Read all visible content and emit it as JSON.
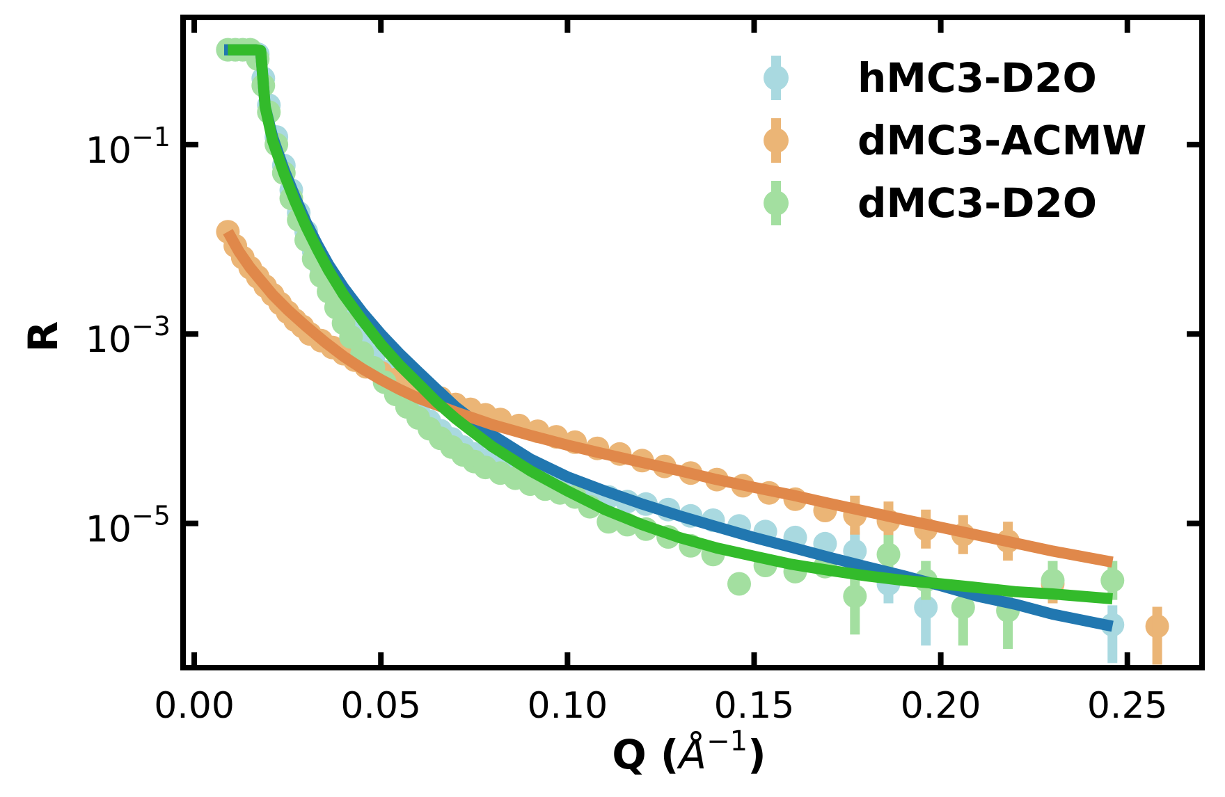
{
  "chart_data": {
    "type": "scatter",
    "xlabel": "Q (",
    "xlabel_unit": "Å",
    "xlabel_sup": "−1",
    "xlabel_end": ")",
    "ylabel": "R",
    "yscale": "log",
    "xlim": [
      -0.003,
      0.27
    ],
    "ylim": [
      3e-07,
      2.2
    ],
    "xticks": [
      0.0,
      0.05,
      0.1,
      0.15,
      0.2,
      0.25
    ],
    "xticklabels": [
      "0.00",
      "0.05",
      "0.10",
      "0.15",
      "0.20",
      "0.25"
    ],
    "yticks": [
      0.1,
      0.001,
      1e-05
    ],
    "yticklabels": [
      {
        "base": "10",
        "exp": "−1"
      },
      {
        "base": "10",
        "exp": "−3"
      },
      {
        "base": "10",
        "exp": "−5"
      }
    ],
    "legend_position": "top-right",
    "series": [
      {
        "name": "hMC3-D2O",
        "marker_color": "#a9d9e0",
        "fit_color": "#2177b0",
        "points": [
          [
            0.009,
            1.0
          ],
          [
            0.011,
            1.0
          ],
          [
            0.013,
            1.0
          ],
          [
            0.015,
            1.0
          ],
          [
            0.017,
            0.9
          ],
          [
            0.0185,
            0.5
          ],
          [
            0.02,
            0.26
          ],
          [
            0.022,
            0.12
          ],
          [
            0.024,
            0.06
          ],
          [
            0.026,
            0.033
          ],
          [
            0.028,
            0.019
          ],
          [
            0.03,
            0.012
          ],
          [
            0.032,
            0.0075
          ],
          [
            0.034,
            0.005
          ],
          [
            0.036,
            0.0034
          ],
          [
            0.038,
            0.0024
          ],
          [
            0.04,
            0.0017
          ],
          [
            0.042,
            0.0012
          ],
          [
            0.045,
            0.00082
          ],
          [
            0.048,
            0.00057
          ],
          [
            0.051,
            0.0004
          ],
          [
            0.054,
            0.00029
          ],
          [
            0.057,
            0.00021
          ],
          [
            0.06,
            0.00016
          ],
          [
            0.063,
            0.00012
          ],
          [
            0.066,
            9.5e-05
          ],
          [
            0.069,
            7.8e-05
          ],
          [
            0.072,
            6.4e-05
          ],
          [
            0.075,
            5.4e-05
          ],
          [
            0.078,
            4.6e-05
          ],
          [
            0.082,
            3.9e-05
          ],
          [
            0.086,
            3.4e-05
          ],
          [
            0.09,
            3e-05
          ],
          [
            0.094,
            2.7e-05
          ],
          [
            0.098,
            2.5e-05
          ],
          [
            0.102,
            2.3e-05
          ],
          [
            0.106,
            2.1e-05
          ],
          [
            0.111,
            1.9e-05
          ],
          [
            0.116,
            1.7e-05
          ],
          [
            0.121,
            1.6e-05
          ],
          [
            0.127,
            1.4e-05
          ],
          [
            0.133,
            1.2e-05
          ],
          [
            0.139,
            1.08e-05
          ],
          [
            0.146,
            9.4e-06
          ],
          [
            0.153,
            8.2e-06
          ],
          [
            0.161,
            7.1e-06
          ],
          [
            0.169,
            6.1e-06
          ],
          [
            0.177,
            5.1e-06
          ],
          [
            0.186,
            2.3e-06
          ],
          [
            0.196,
            1.3e-06
          ],
          [
            0.246,
            8.5e-07
          ]
        ],
        "fit": [
          [
            0.008,
            1.0
          ],
          [
            0.0165,
            1.0
          ],
          [
            0.0178,
            0.98
          ],
          [
            0.019,
            0.25
          ],
          [
            0.021,
            0.12
          ],
          [
            0.024,
            0.055
          ],
          [
            0.027,
            0.028
          ],
          [
            0.03,
            0.015
          ],
          [
            0.033,
            0.0088
          ],
          [
            0.036,
            0.0054
          ],
          [
            0.04,
            0.0031
          ],
          [
            0.045,
            0.0017
          ],
          [
            0.05,
            0.001
          ],
          [
            0.055,
            0.00062
          ],
          [
            0.06,
            0.0004
          ],
          [
            0.065,
            0.00026
          ],
          [
            0.07,
            0.00017
          ],
          [
            0.075,
            0.00012
          ],
          [
            0.08,
            8.5e-05
          ],
          [
            0.09,
            4.8e-05
          ],
          [
            0.1,
            3.1e-05
          ],
          [
            0.11,
            2.2e-05
          ],
          [
            0.12,
            1.6e-05
          ],
          [
            0.13,
            1.2e-05
          ],
          [
            0.14,
            9.2e-06
          ],
          [
            0.15,
            7.1e-06
          ],
          [
            0.16,
            5.6e-06
          ],
          [
            0.17,
            4.4e-06
          ],
          [
            0.18,
            3.5e-06
          ],
          [
            0.19,
            2.8e-06
          ],
          [
            0.2,
            2.2e-06
          ],
          [
            0.21,
            1.7e-06
          ],
          [
            0.22,
            1.4e-06
          ],
          [
            0.23,
            1.1e-06
          ],
          [
            0.246,
            8.2e-07
          ]
        ]
      },
      {
        "name": "dMC3-ACMW",
        "marker_color": "#ebb576",
        "fit_color": "#e0884a",
        "points": [
          [
            0.009,
            0.012
          ],
          [
            0.011,
            0.0085
          ],
          [
            0.013,
            0.0064
          ],
          [
            0.015,
            0.005
          ],
          [
            0.017,
            0.004
          ],
          [
            0.019,
            0.0032
          ],
          [
            0.021,
            0.0026
          ],
          [
            0.023,
            0.0021
          ],
          [
            0.025,
            0.0017
          ],
          [
            0.027,
            0.0014
          ],
          [
            0.029,
            0.0012
          ],
          [
            0.031,
            0.001
          ],
          [
            0.034,
            0.00085
          ],
          [
            0.037,
            0.00072
          ],
          [
            0.04,
            0.00062
          ],
          [
            0.043,
            0.00053
          ],
          [
            0.046,
            0.00045
          ],
          [
            0.05,
            0.00039
          ],
          [
            0.054,
            0.00033
          ],
          [
            0.058,
            0.00028
          ],
          [
            0.062,
            0.00024
          ],
          [
            0.066,
            0.00021
          ],
          [
            0.07,
            0.00018
          ],
          [
            0.074,
            0.00016
          ],
          [
            0.078,
            0.00014
          ],
          [
            0.082,
            0.000125
          ],
          [
            0.087,
            0.000108
          ],
          [
            0.092,
            9.4e-05
          ],
          [
            0.097,
            8.2e-05
          ],
          [
            0.102,
            7.2e-05
          ],
          [
            0.108,
            6.2e-05
          ],
          [
            0.114,
            5.4e-05
          ],
          [
            0.12,
            4.6e-05
          ],
          [
            0.126,
            4e-05
          ],
          [
            0.133,
            3.4e-05
          ],
          [
            0.14,
            2.9e-05
          ],
          [
            0.147,
            2.5e-05
          ],
          [
            0.154,
            2.1e-05
          ],
          [
            0.161,
            1.8e-05
          ],
          [
            0.169,
            1.37e-05
          ],
          [
            0.177,
            1.22e-05
          ],
          [
            0.186,
            1.06e-05
          ],
          [
            0.196,
            8.7e-06
          ],
          [
            0.206,
            7.6e-06
          ],
          [
            0.218,
            6.5e-06
          ],
          [
            0.23,
            2.3e-06
          ],
          [
            0.258,
            8.2e-07
          ]
        ],
        "fit": [
          [
            0.009,
            0.012
          ],
          [
            0.012,
            0.0074
          ],
          [
            0.015,
            0.005
          ],
          [
            0.018,
            0.0036
          ],
          [
            0.021,
            0.0026
          ],
          [
            0.025,
            0.0018
          ],
          [
            0.03,
            0.0012
          ],
          [
            0.035,
            0.00082
          ],
          [
            0.04,
            0.00058
          ],
          [
            0.045,
            0.00043
          ],
          [
            0.05,
            0.00033
          ],
          [
            0.055,
            0.00026
          ],
          [
            0.06,
            0.00021
          ],
          [
            0.07,
            0.00015
          ],
          [
            0.08,
            0.00011
          ],
          [
            0.09,
            8.5e-05
          ],
          [
            0.1,
            6.7e-05
          ],
          [
            0.11,
            5.4e-05
          ],
          [
            0.12,
            4.4e-05
          ],
          [
            0.13,
            3.6e-05
          ],
          [
            0.14,
            2.9e-05
          ],
          [
            0.15,
            2.4e-05
          ],
          [
            0.16,
            2e-05
          ],
          [
            0.17,
            1.63e-05
          ],
          [
            0.18,
            1.34e-05
          ],
          [
            0.19,
            1.1e-05
          ],
          [
            0.2,
            9.1e-06
          ],
          [
            0.21,
            7.5e-06
          ],
          [
            0.22,
            6.2e-06
          ],
          [
            0.23,
            5.1e-06
          ],
          [
            0.246,
            3.9e-06
          ]
        ]
      },
      {
        "name": "dMC3-D2O",
        "marker_color": "#a3dfa0",
        "fit_color": "#33bb2b",
        "points": [
          [
            0.009,
            1.0
          ],
          [
            0.011,
            1.0
          ],
          [
            0.013,
            1.0
          ],
          [
            0.015,
            1.0
          ],
          [
            0.017,
            0.8
          ],
          [
            0.0185,
            0.42
          ],
          [
            0.02,
            0.22
          ],
          [
            0.022,
            0.1
          ],
          [
            0.024,
            0.05
          ],
          [
            0.026,
            0.027
          ],
          [
            0.028,
            0.016
          ],
          [
            0.03,
            0.0098
          ],
          [
            0.032,
            0.0062
          ],
          [
            0.034,
            0.0041
          ],
          [
            0.036,
            0.0028
          ],
          [
            0.038,
            0.0019
          ],
          [
            0.04,
            0.0013
          ],
          [
            0.042,
            0.00093
          ],
          [
            0.045,
            0.00063
          ],
          [
            0.048,
            0.00044
          ],
          [
            0.051,
            0.00031
          ],
          [
            0.054,
            0.00023
          ],
          [
            0.057,
            0.00017
          ],
          [
            0.06,
            0.00013
          ],
          [
            0.063,
            0.0001
          ],
          [
            0.066,
            7.9e-05
          ],
          [
            0.069,
            6.4e-05
          ],
          [
            0.072,
            5.3e-05
          ],
          [
            0.075,
            4.5e-05
          ],
          [
            0.078,
            3.9e-05
          ],
          [
            0.082,
            3.4e-05
          ],
          [
            0.086,
            3e-05
          ],
          [
            0.09,
            2.6e-05
          ],
          [
            0.094,
            2.3e-05
          ],
          [
            0.098,
            2.1e-05
          ],
          [
            0.102,
            1.9e-05
          ],
          [
            0.106,
            1.5e-05
          ],
          [
            0.111,
            1.04e-05
          ],
          [
            0.116,
            9.7e-06
          ],
          [
            0.121,
            8.7e-06
          ],
          [
            0.127,
            7.2e-06
          ],
          [
            0.133,
            5.8e-06
          ],
          [
            0.139,
            4.7e-06
          ],
          [
            0.146,
            2.3e-06
          ],
          [
            0.153,
            3.6e-06
          ],
          [
            0.161,
            3.1e-06
          ],
          [
            0.169,
            3.5e-06
          ],
          [
            0.177,
            1.7e-06
          ],
          [
            0.186,
            4.7e-06
          ],
          [
            0.196,
            2.5e-06
          ],
          [
            0.206,
            1.3e-06
          ],
          [
            0.218,
            1.2e-06
          ],
          [
            0.23,
            2.5e-06
          ],
          [
            0.246,
            2.5e-06
          ]
        ],
        "fit": [
          [
            0.009,
            1.0
          ],
          [
            0.0165,
            1.0
          ],
          [
            0.0178,
            0.98
          ],
          [
            0.019,
            0.25
          ],
          [
            0.021,
            0.11
          ],
          [
            0.024,
            0.05
          ],
          [
            0.027,
            0.025
          ],
          [
            0.03,
            0.0135
          ],
          [
            0.033,
            0.0078
          ],
          [
            0.036,
            0.0047
          ],
          [
            0.04,
            0.0026
          ],
          [
            0.045,
            0.0014
          ],
          [
            0.05,
            0.00078
          ],
          [
            0.055,
            0.00047
          ],
          [
            0.06,
            0.0003
          ],
          [
            0.065,
            0.00019
          ],
          [
            0.07,
            0.000128
          ],
          [
            0.075,
            9e-05
          ],
          [
            0.08,
            6.4e-05
          ],
          [
            0.09,
            3.6e-05
          ],
          [
            0.1,
            2.2e-05
          ],
          [
            0.11,
            1.4e-05
          ],
          [
            0.12,
            9.7e-06
          ],
          [
            0.13,
            7.1e-06
          ],
          [
            0.14,
            5.5e-06
          ],
          [
            0.15,
            4.5e-06
          ],
          [
            0.16,
            3.7e-06
          ],
          [
            0.17,
            3.2e-06
          ],
          [
            0.18,
            2.8e-06
          ],
          [
            0.19,
            2.5e-06
          ],
          [
            0.2,
            2.3e-06
          ],
          [
            0.21,
            2.1e-06
          ],
          [
            0.22,
            1.9e-06
          ],
          [
            0.23,
            1.8e-06
          ],
          [
            0.246,
            1.6e-06
          ]
        ]
      }
    ]
  }
}
